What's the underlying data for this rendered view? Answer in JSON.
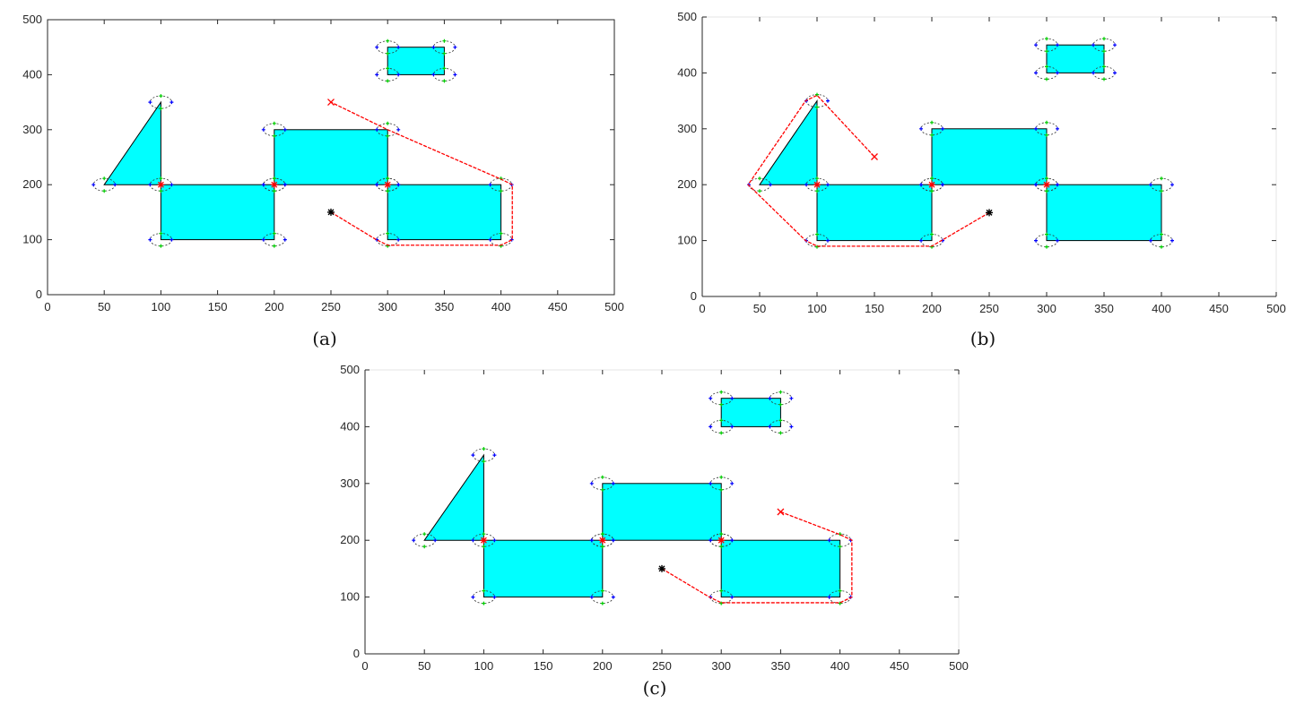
{
  "figure": {
    "colors": {
      "obstacle_fill": "#00FFFF",
      "obstacle_edge": "#000000",
      "path": "#FF0000",
      "start_marker": "#000000",
      "goal_marker": "#FF0000",
      "waypoint": "#FF0000",
      "corner_green": "#00CC00",
      "corner_blue": "#0000FF"
    },
    "panels": [
      {
        "caption": "(a)",
        "axes": {
          "xlim": [
            0,
            500
          ],
          "ylim": [
            0,
            500
          ],
          "xticks": [
            "0",
            "50",
            "100",
            "150",
            "200",
            "250",
            "300",
            "350",
            "400",
            "450",
            "500"
          ],
          "yticks": [
            "0",
            "100",
            "200",
            "300",
            "400",
            "500"
          ],
          "box": "full"
        },
        "obstacles": [
          {
            "shape": "triangle",
            "points": [
              [
                50,
                200
              ],
              [
                100,
                350
              ],
              [
                100,
                200
              ]
            ]
          },
          {
            "shape": "rect",
            "x": 100,
            "y": 100,
            "w": 100,
            "h": 100
          },
          {
            "shape": "rect",
            "x": 200,
            "y": 200,
            "w": 100,
            "h": 100
          },
          {
            "shape": "rect",
            "x": 300,
            "y": 100,
            "w": 100,
            "h": 100
          },
          {
            "shape": "rect",
            "x": 300,
            "y": 400,
            "w": 50,
            "h": 50
          }
        ],
        "start": [
          250,
          150
        ],
        "goal": [
          250,
          350
        ],
        "path": [
          [
            250,
            150
          ],
          [
            290,
            100
          ],
          [
            300,
            90
          ],
          [
            400,
            90
          ],
          [
            410,
            100
          ],
          [
            410,
            200
          ],
          [
            400,
            210
          ],
          [
            300,
            300
          ],
          [
            250,
            350
          ]
        ],
        "waypoints": [
          [
            100,
            200
          ],
          [
            200,
            200
          ],
          [
            300,
            200
          ]
        ]
      },
      {
        "caption": "(b)",
        "axes": {
          "xlim": [
            0,
            500
          ],
          "ylim": [
            0,
            500
          ],
          "xticks": [
            "0",
            "50",
            "100",
            "150",
            "200",
            "250",
            "300",
            "350",
            "400",
            "450",
            "500"
          ],
          "yticks": [
            "0",
            "100",
            "200",
            "300",
            "400",
            "500"
          ],
          "box": "left"
        },
        "obstacles": [
          {
            "shape": "triangle",
            "points": [
              [
                50,
                200
              ],
              [
                100,
                350
              ],
              [
                100,
                200
              ]
            ]
          },
          {
            "shape": "rect",
            "x": 100,
            "y": 100,
            "w": 100,
            "h": 100
          },
          {
            "shape": "rect",
            "x": 200,
            "y": 200,
            "w": 100,
            "h": 100
          },
          {
            "shape": "rect",
            "x": 300,
            "y": 100,
            "w": 100,
            "h": 100
          },
          {
            "shape": "rect",
            "x": 300,
            "y": 400,
            "w": 50,
            "h": 50
          }
        ],
        "start": [
          250,
          150
        ],
        "goal": [
          150,
          250
        ],
        "path": [
          [
            250,
            150
          ],
          [
            200,
            90
          ],
          [
            100,
            90
          ],
          [
            90,
            100
          ],
          [
            40,
            200
          ],
          [
            90,
            350
          ],
          [
            100,
            360
          ],
          [
            150,
            250
          ]
        ],
        "waypoints": [
          [
            100,
            200
          ],
          [
            200,
            200
          ],
          [
            300,
            200
          ]
        ]
      },
      {
        "caption": "(c)",
        "axes": {
          "xlim": [
            0,
            500
          ],
          "ylim": [
            0,
            500
          ],
          "xticks": [
            "0",
            "50",
            "100",
            "150",
            "200",
            "250",
            "300",
            "350",
            "400",
            "450",
            "500"
          ],
          "yticks": [
            "0",
            "100",
            "200",
            "300",
            "400",
            "500"
          ],
          "box": "left"
        },
        "obstacles": [
          {
            "shape": "triangle",
            "points": [
              [
                50,
                200
              ],
              [
                100,
                350
              ],
              [
                100,
                200
              ]
            ]
          },
          {
            "shape": "rect",
            "x": 100,
            "y": 100,
            "w": 100,
            "h": 100
          },
          {
            "shape": "rect",
            "x": 200,
            "y": 200,
            "w": 100,
            "h": 100
          },
          {
            "shape": "rect",
            "x": 300,
            "y": 100,
            "w": 100,
            "h": 100
          },
          {
            "shape": "rect",
            "x": 300,
            "y": 400,
            "w": 50,
            "h": 50
          }
        ],
        "start": [
          250,
          150
        ],
        "goal": [
          350,
          250
        ],
        "path": [
          [
            250,
            150
          ],
          [
            290,
            100
          ],
          [
            300,
            90
          ],
          [
            400,
            90
          ],
          [
            410,
            100
          ],
          [
            410,
            200
          ],
          [
            400,
            210
          ],
          [
            350,
            250
          ]
        ],
        "waypoints": [
          [
            100,
            200
          ],
          [
            200,
            200
          ],
          [
            300,
            200
          ]
        ]
      }
    ]
  }
}
